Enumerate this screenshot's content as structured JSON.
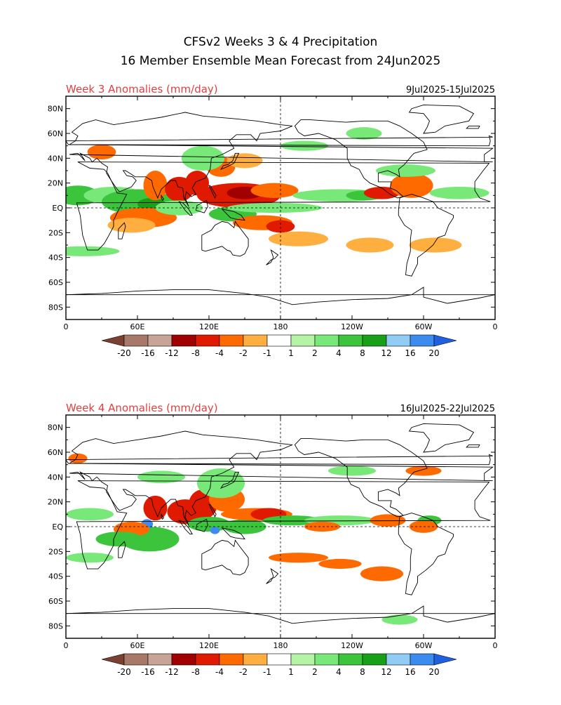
{
  "title": {
    "line1": "CFSv2 Weeks 3 & 4 Precipitation",
    "line2": "16 Member Ensemble Mean Forecast from 24Jun2025"
  },
  "colors": {
    "panel_title": "#e04040",
    "neg": [
      "#7a4030",
      "#a87868",
      "#c8a498",
      "#a00000",
      "#e01a00",
      "#ff6a00",
      "#ffae40"
    ],
    "zero": "#ffffff",
    "pos": [
      "#b4f4a4",
      "#78e878",
      "#3cc43c",
      "#18a018",
      "#90ccf4",
      "#3c8cf0",
      "#2060e0"
    ]
  },
  "lat_labels": [
    "80N",
    "60N",
    "40N",
    "20N",
    "EQ",
    "20S",
    "40S",
    "60S",
    "80S"
  ],
  "lon_labels": [
    "0",
    "60E",
    "120E",
    "180",
    "120W",
    "60W",
    "0"
  ],
  "colorbar_labels": [
    "-20",
    "-16",
    "-12",
    "-8",
    "-4",
    "-2",
    "-1",
    "1",
    "2",
    "4",
    "8",
    "12",
    "16",
    "20"
  ],
  "panels": [
    {
      "title": "Week 3 Anomalies (mm/day)",
      "dates": "9Jul2025-15Jul2025",
      "blobs": [
        {
          "c": "#3cc43c",
          "lon": 10,
          "lat": 10,
          "w": 18,
          "h": 8
        },
        {
          "c": "#78e878",
          "lon": 40,
          "lat": 10,
          "w": 25,
          "h": 7
        },
        {
          "c": "#3cc43c",
          "lon": 60,
          "lat": 5,
          "w": 30,
          "h": 10
        },
        {
          "c": "#18a018",
          "lon": 72,
          "lat": 3,
          "w": 12,
          "h": 5
        },
        {
          "c": "#ff6a00",
          "lon": 65,
          "lat": -8,
          "w": 28,
          "h": 8
        },
        {
          "c": "#ffae40",
          "lon": 55,
          "lat": -14,
          "w": 20,
          "h": 6
        },
        {
          "c": "#ff6a00",
          "lon": 75,
          "lat": 18,
          "w": 10,
          "h": 12
        },
        {
          "c": "#e01a00",
          "lon": 95,
          "lat": 15,
          "w": 12,
          "h": 10
        },
        {
          "c": "#e01a00",
          "lon": 110,
          "lat": 20,
          "w": 10,
          "h": 10
        },
        {
          "c": "#e01a00",
          "lon": 145,
          "lat": 10,
          "w": 35,
          "h": 10
        },
        {
          "c": "#a00000",
          "lon": 150,
          "lat": 12,
          "w": 15,
          "h": 5
        },
        {
          "c": "#ff6a00",
          "lon": 175,
          "lat": 14,
          "w": 20,
          "h": 6
        },
        {
          "c": "#ff6a00",
          "lon": 130,
          "lat": 33,
          "w": 12,
          "h": 8
        },
        {
          "c": "#ffae40",
          "lon": 150,
          "lat": 38,
          "w": 15,
          "h": 6
        },
        {
          "c": "#78e878",
          "lon": 115,
          "lat": 40,
          "w": 18,
          "h": 10
        },
        {
          "c": "#78e878",
          "lon": 95,
          "lat": 0,
          "w": 20,
          "h": 6
        },
        {
          "c": "#3cc43c",
          "lon": 140,
          "lat": -5,
          "w": 20,
          "h": 6
        },
        {
          "c": "#78e878",
          "lon": 175,
          "lat": 0,
          "w": 40,
          "h": 4
        },
        {
          "c": "#ff6a00",
          "lon": 165,
          "lat": -12,
          "w": 25,
          "h": 6
        },
        {
          "c": "#e01a00",
          "lon": 180,
          "lat": -15,
          "w": 12,
          "h": 5
        },
        {
          "c": "#ffae40",
          "lon": 195,
          "lat": -25,
          "w": 25,
          "h": 6
        },
        {
          "c": "#78e878",
          "lon": 230,
          "lat": 10,
          "w": 40,
          "h": 5
        },
        {
          "c": "#3cc43c",
          "lon": 250,
          "lat": 10,
          "w": 15,
          "h": 4
        },
        {
          "c": "#e01a00",
          "lon": 265,
          "lat": 12,
          "w": 15,
          "h": 5
        },
        {
          "c": "#ff6a00",
          "lon": 290,
          "lat": 18,
          "w": 18,
          "h": 10
        },
        {
          "c": "#78e878",
          "lon": 285,
          "lat": 30,
          "w": 25,
          "h": 5
        },
        {
          "c": "#78e878",
          "lon": 330,
          "lat": 12,
          "w": 25,
          "h": 5
        },
        {
          "c": "#ffae40",
          "lon": 255,
          "lat": -30,
          "w": 20,
          "h": 6
        },
        {
          "c": "#ffae40",
          "lon": 310,
          "lat": -30,
          "w": 22,
          "h": 6
        },
        {
          "c": "#78e878",
          "lon": 15,
          "lat": -35,
          "w": 30,
          "h": 4
        },
        {
          "c": "#78e878",
          "lon": 200,
          "lat": 50,
          "w": 20,
          "h": 4
        },
        {
          "c": "#78e878",
          "lon": 250,
          "lat": 60,
          "w": 15,
          "h": 5
        },
        {
          "c": "#ff6a00",
          "lon": 30,
          "lat": 45,
          "w": 12,
          "h": 6
        }
      ]
    },
    {
      "title": "Week 4 Anomalies (mm/day)",
      "dates": "16Jul2025-22Jul2025",
      "blobs": [
        {
          "c": "#78e878",
          "lon": 20,
          "lat": 10,
          "w": 20,
          "h": 5
        },
        {
          "c": "#3cc43c",
          "lon": 70,
          "lat": -10,
          "w": 25,
          "h": 10
        },
        {
          "c": "#3c8cf0",
          "lon": 68,
          "lat": 2,
          "w": 5,
          "h": 4
        },
        {
          "c": "#e01a00",
          "lon": 75,
          "lat": 15,
          "w": 10,
          "h": 10
        },
        {
          "c": "#ff6a00",
          "lon": 55,
          "lat": -2,
          "w": 15,
          "h": 6
        },
        {
          "c": "#3cc43c",
          "lon": 45,
          "lat": -10,
          "w": 20,
          "h": 6
        },
        {
          "c": "#e01a00",
          "lon": 100,
          "lat": 12,
          "w": 15,
          "h": 10
        },
        {
          "c": "#e01a00",
          "lon": 115,
          "lat": 18,
          "w": 12,
          "h": 12
        },
        {
          "c": "#ff6a00",
          "lon": 135,
          "lat": 22,
          "w": 15,
          "h": 10
        },
        {
          "c": "#78e878",
          "lon": 130,
          "lat": 35,
          "w": 20,
          "h": 12
        },
        {
          "c": "#3cc43c",
          "lon": 120,
          "lat": 2,
          "w": 18,
          "h": 6
        },
        {
          "c": "#3c8cf0",
          "lon": 125,
          "lat": -3,
          "w": 4,
          "h": 3
        },
        {
          "c": "#3cc43c",
          "lon": 150,
          "lat": 0,
          "w": 18,
          "h": 6
        },
        {
          "c": "#ff6a00",
          "lon": 160,
          "lat": 10,
          "w": 30,
          "h": 5
        },
        {
          "c": "#e01a00",
          "lon": 170,
          "lat": 10,
          "w": 15,
          "h": 5
        },
        {
          "c": "#3cc43c",
          "lon": 190,
          "lat": 5,
          "w": 25,
          "h": 4
        },
        {
          "c": "#78e878",
          "lon": 230,
          "lat": 5,
          "w": 30,
          "h": 4
        },
        {
          "c": "#ff6a00",
          "lon": 215,
          "lat": 0,
          "w": 15,
          "h": 4
        },
        {
          "c": "#ff6a00",
          "lon": 270,
          "lat": 5,
          "w": 15,
          "h": 5
        },
        {
          "c": "#3cc43c",
          "lon": 305,
          "lat": 5,
          "w": 10,
          "h": 4
        },
        {
          "c": "#ff6a00",
          "lon": 300,
          "lat": 0,
          "w": 12,
          "h": 5
        },
        {
          "c": "#ff6a00",
          "lon": 195,
          "lat": -25,
          "w": 25,
          "h": 4
        },
        {
          "c": "#ff6a00",
          "lon": 230,
          "lat": -30,
          "w": 18,
          "h": 4
        },
        {
          "c": "#ff6a00",
          "lon": 265,
          "lat": -38,
          "w": 18,
          "h": 6
        },
        {
          "c": "#78e878",
          "lon": 20,
          "lat": -25,
          "w": 20,
          "h": 4
        },
        {
          "c": "#78e878",
          "lon": 280,
          "lat": -75,
          "w": 15,
          "h": 4
        },
        {
          "c": "#78e878",
          "lon": 240,
          "lat": 45,
          "w": 20,
          "h": 4
        },
        {
          "c": "#ff6a00",
          "lon": 10,
          "lat": 55,
          "w": 8,
          "h": 4
        },
        {
          "c": "#ff6a00",
          "lon": 300,
          "lat": 45,
          "w": 15,
          "h": 4
        },
        {
          "c": "#78e878",
          "lon": 80,
          "lat": 40,
          "w": 20,
          "h": 5
        }
      ]
    }
  ]
}
